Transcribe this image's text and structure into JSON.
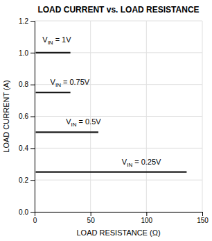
{
  "chart_data": {
    "type": "line",
    "title": "LOAD CURRENT vs. LOAD RESISTANCE",
    "xlabel": "LOAD RESISTANCE (Ω)",
    "ylabel": "LOAD CURRENT (A)",
    "xlim": [
      0,
      150
    ],
    "ylim": [
      0,
      1.2
    ],
    "xticks": [
      0,
      50,
      100,
      150
    ],
    "yticks": [
      {
        "value": 0,
        "label": "0.0"
      },
      0.2,
      0.4,
      0.6,
      0.8,
      {
        "value": 1.0,
        "label": "1.0"
      },
      1.2
    ],
    "grid": true,
    "series": [
      {
        "color": "#1a1a1a",
        "x": [
          1,
          32
        ],
        "values": [
          1.0,
          1.0
        ]
      },
      {
        "color": "#1a1a1a",
        "x": [
          1,
          32
        ],
        "values": [
          0.75,
          0.75
        ]
      },
      {
        "color": "#1a1a1a",
        "x": [
          1,
          57
        ],
        "values": [
          0.5,
          0.5
        ]
      },
      {
        "color": "#1a1a1a",
        "x": [
          1,
          136
        ],
        "values": [
          0.25,
          0.25
        ]
      }
    ],
    "annotations": [
      {
        "text": "V",
        "subscript": "IN",
        "suffix": "= 1V",
        "x": 7,
        "y": 1.05
      },
      {
        "text": "V",
        "subscript": "IN",
        "suffix": "= 0.75V",
        "x": 14,
        "y": 0.785
      },
      {
        "text": "V",
        "subscript": "IN",
        "suffix": "= 0.5V",
        "x": 28,
        "y": 0.535
      },
      {
        "text": "V",
        "subscript": "IN",
        "suffix": "= 0.25V",
        "x": 78,
        "y": 0.285
      }
    ]
  }
}
